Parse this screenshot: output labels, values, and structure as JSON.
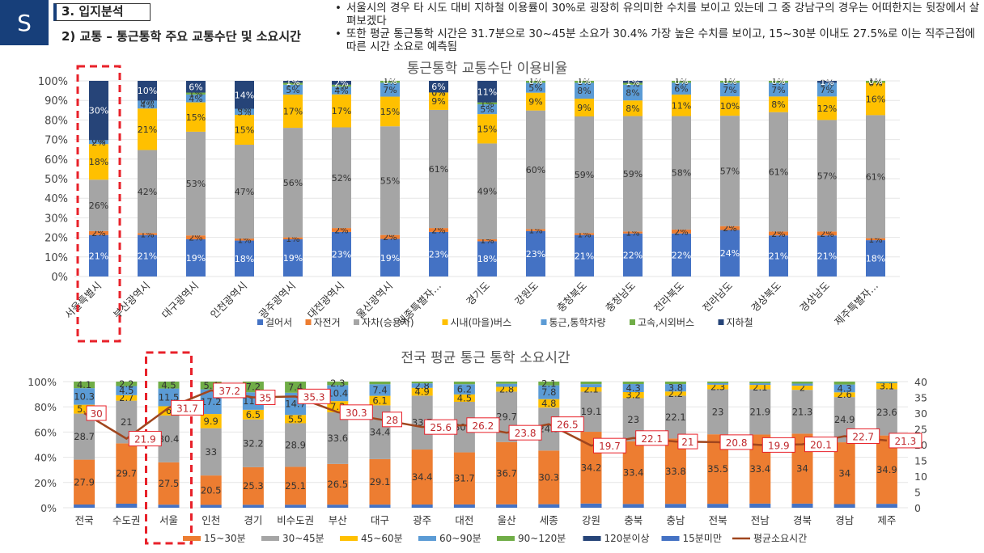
{
  "header": {
    "badge": "S",
    "section": "3. 입지분석",
    "subsection": "2) 교통 – 통근통학 주요 교통수단 및 소요시간",
    "notes": [
      "서울시의 경우 타 시도 대비 지하철 이용률이 30%로 굉장히 유의미한 수치를 보이고 있는데 그 중 강남구의 경우는 어떠한지는 뒷장에서 살펴보겠다",
      "또한 평균 통근통학 시간은 31.7분으로 30~45분 소요가 30.4% 가장 높은 수치를 보이고, 15~30분 이내도 27.5%로 이는 직주근접에 따른 시간 소요로 예측됨"
    ]
  },
  "colors": {
    "highlight": "#e8212a",
    "line": "#a0461e"
  },
  "chart_data": [
    {
      "type": "bar",
      "stacked": true,
      "title": "통근통학 교통수단 이용비율",
      "ylim": [
        0,
        100
      ],
      "yticks": [
        "0%",
        "10%",
        "20%",
        "30%",
        "40%",
        "50%",
        "60%",
        "70%",
        "80%",
        "90%",
        "100%"
      ],
      "categories": [
        "서울특별시",
        "부산광역시",
        "대구광역시",
        "인천광역시",
        "광주광역시",
        "대전광역시",
        "울산광역시",
        "세종특별자…",
        "경기도",
        "강원도",
        "충청북도",
        "충청남도",
        "전라북도",
        "전라남도",
        "경상북도",
        "경상남도",
        "제주특별자…"
      ],
      "highlight_category": "서울특별시",
      "legend_position": "bottom",
      "series": [
        {
          "name": "걸어서",
          "color": "#4472c4",
          "values": [
            21,
            21,
            19,
            18,
            19,
            23,
            19,
            23,
            18,
            23,
            21,
            22,
            22,
            24,
            21,
            21,
            18
          ]
        },
        {
          "name": "자전거",
          "color": "#ed7d31",
          "values": [
            2,
            1,
            2,
            1,
            1,
            2,
            2,
            2,
            1,
            1,
            1,
            1,
            2,
            2,
            2,
            2,
            1
          ]
        },
        {
          "name": "자차(승용차)",
          "color": "#a5a5a5",
          "values": [
            26,
            42,
            53,
            47,
            56,
            52,
            55,
            61,
            49,
            60,
            59,
            59,
            58,
            57,
            61,
            57,
            61
          ]
        },
        {
          "name": "시내(마을)버스",
          "color": "#ffc000",
          "values": [
            18,
            21,
            15,
            15,
            17,
            17,
            15,
            9,
            15,
            9,
            9,
            8,
            11,
            10,
            8,
            12,
            16
          ]
        },
        {
          "name": "통근,통학차량",
          "color": "#5b9bd5",
          "values": [
            2,
            4,
            4,
            3,
            5,
            4,
            7,
            0,
            5,
            5,
            8,
            8,
            6,
            7,
            7,
            7,
            0
          ]
        },
        {
          "name": "고속,시외버스",
          "color": "#70ad47",
          "values": [
            0,
            0,
            1,
            0,
            1,
            1,
            1,
            0,
            1,
            1,
            1,
            1,
            1,
            1,
            1,
            0,
            1
          ]
        },
        {
          "name": "지하철",
          "color": "#264478",
          "values": [
            30,
            10,
            6,
            14,
            1,
            2,
            0,
            6,
            11,
            0,
            0,
            1,
            0,
            0,
            0,
            1,
            0
          ]
        }
      ]
    },
    {
      "type": "bar",
      "stacked": true,
      "title": "전국 평균 통근 통학 소요시간",
      "ylim": [
        0,
        100
      ],
      "y2lim": [
        0,
        40
      ],
      "yticks": [
        "0%",
        "20%",
        "40%",
        "60%",
        "80%",
        "100%"
      ],
      "y2ticks": [
        "0",
        "5",
        "10",
        "15",
        "20",
        "25",
        "30",
        "35",
        "40"
      ],
      "categories": [
        "전국",
        "수도권",
        "서울",
        "인천",
        "경기",
        "비수도권",
        "부산",
        "대구",
        "광주",
        "대전",
        "울산",
        "세종",
        "강원",
        "충북",
        "충남",
        "전북",
        "전남",
        "경북",
        "경남",
        "제주"
      ],
      "highlight_category": "서울",
      "legend_position": "bottom",
      "series": [
        {
          "name": "15분미만",
          "color": "#4472c4",
          "values": [
            2,
            2,
            2,
            2,
            2,
            2,
            2,
            2,
            2,
            2,
            2,
            2,
            2,
            2,
            2,
            2,
            2,
            2,
            2,
            2
          ]
        },
        {
          "name": "15~30분",
          "color": "#ed7d31",
          "values": [
            27.9,
            29.7,
            27.5,
            20.5,
            25.3,
            25.1,
            26.5,
            29.1,
            34.4,
            31.7,
            36.7,
            30.3,
            34.2,
            33.4,
            33.8,
            35.5,
            33.4,
            34,
            34,
            34.9
          ]
        },
        {
          "name": "30~45분",
          "color": "#a5a5a5",
          "values": [
            28.7,
            21,
            30.4,
            33,
            32.2,
            28.9,
            33.6,
            34.4,
            33.7,
            30.8,
            29.7,
            24.3,
            19.1,
            23,
            22.1,
            23,
            21.9,
            21.3,
            24.9,
            23.6
          ]
        },
        {
          "name": "45~60분",
          "color": "#ffc000",
          "values": [
            5.5,
            2.7,
            6,
            9.9,
            6.5,
            5.5,
            7.3,
            6.1,
            4.9,
            4.5,
            2.8,
            4.8,
            2.1,
            3.2,
            2.2,
            2.3,
            2.1,
            2,
            2.6,
            3.1
          ]
        },
        {
          "name": "60~90분",
          "color": "#5b9bd5",
          "values": [
            10.3,
            4.5,
            11.5,
            17.2,
            11.8,
            14.7,
            10.4,
            7.4,
            2.8,
            6.2,
            1.8,
            7.8,
            1.5,
            4.3,
            3.8,
            0.8,
            0.8,
            1,
            4.3,
            0.4
          ]
        },
        {
          "name": "90~120분",
          "color": "#70ad47",
          "values": [
            4.1,
            2.2,
            4.5,
            5.4,
            7.2,
            7.4,
            2.3,
            1.7,
            1.1,
            1.6,
            1.3,
            2.1,
            1.2,
            1.3,
            1.3,
            0.8,
            0.8,
            1,
            1.6,
            0.4
          ]
        },
        {
          "name": "120분이상",
          "color": "#264478",
          "values": [
            0,
            0,
            0,
            0,
            0,
            0,
            0,
            0,
            0,
            0,
            0,
            0,
            0,
            0,
            0,
            0,
            0,
            0,
            0,
            0
          ]
        }
      ],
      "line": {
        "name": "평균소요시간",
        "color": "#a0461e",
        "axis": "right",
        "values": [
          30,
          21.9,
          31.7,
          37.2,
          35,
          35.3,
          30.3,
          28,
          25.6,
          26.2,
          23.8,
          26.5,
          19.7,
          22.1,
          21,
          20.8,
          19.9,
          20.1,
          22.7,
          21.3
        ]
      }
    }
  ]
}
